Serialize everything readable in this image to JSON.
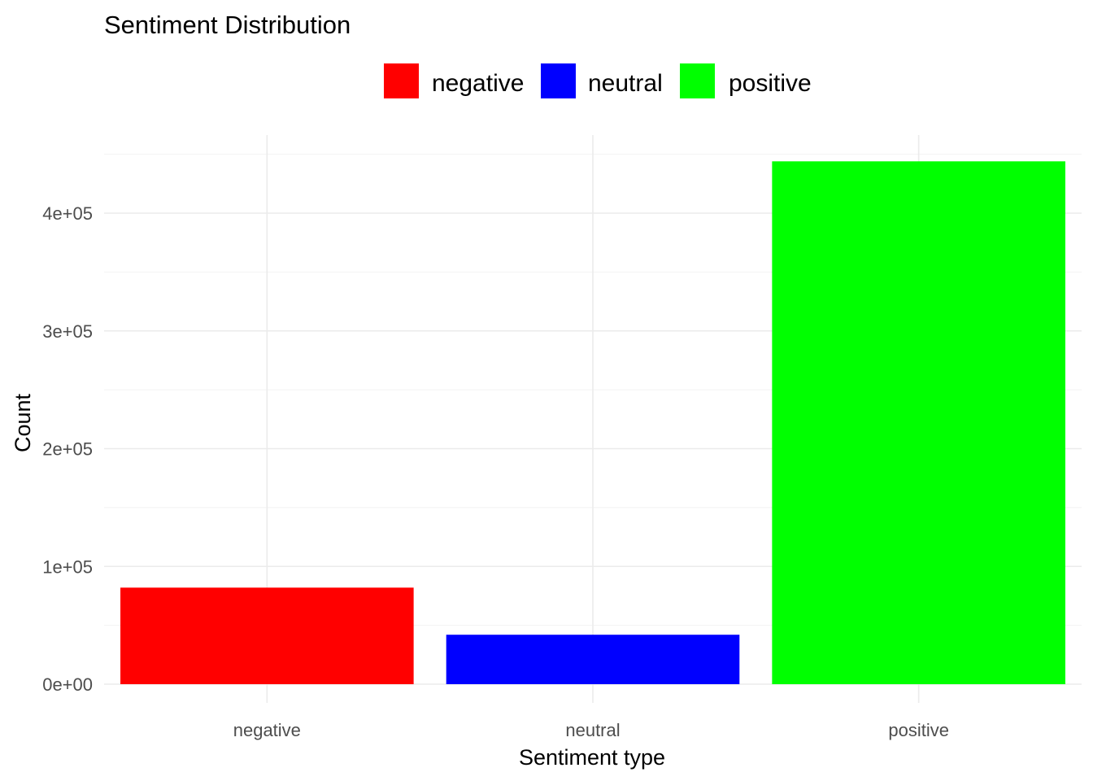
{
  "chart_data": {
    "type": "bar",
    "title": "Sentiment Distribution",
    "xlabel": "Sentiment type",
    "ylabel": "Count",
    "categories": [
      "negative",
      "neutral",
      "positive"
    ],
    "values": [
      82000,
      42000,
      444000
    ],
    "colors": [
      "#ff0000",
      "#0000ff",
      "#00ff00"
    ],
    "ylim": [
      0,
      460000
    ],
    "yticks": [
      0,
      100000,
      200000,
      300000,
      400000
    ],
    "ytick_labels": [
      "0e+00",
      "1e+05",
      "2e+05",
      "3e+05",
      "4e+05"
    ],
    "legend": {
      "position": "top",
      "entries": [
        {
          "label": "negative",
          "color": "#ff0000"
        },
        {
          "label": "neutral",
          "color": "#0000ff"
        },
        {
          "label": "positive",
          "color": "#00ff00"
        }
      ]
    },
    "grid": true
  }
}
